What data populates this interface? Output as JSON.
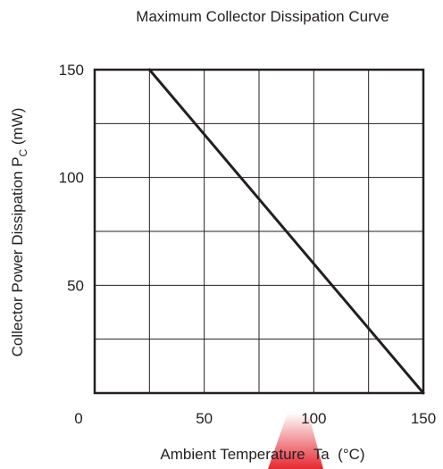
{
  "chart_data": {
    "type": "line",
    "title": "Maximum Collector Dissipation Curve",
    "xlabel": "Ambient Temperature  Ta  (°C)",
    "ylabel": "Collector Power Dissipation P",
    "ylabel_subscript": "C",
    "ylabel_unit": " (mW)",
    "xlim": [
      0,
      150
    ],
    "ylim": [
      0,
      150
    ],
    "x_grid": [
      0,
      25,
      50,
      75,
      100,
      125,
      150
    ],
    "y_grid": [
      0,
      25,
      50,
      75,
      100,
      125,
      150
    ],
    "x_ticks": [
      {
        "value": 0,
        "label": "0"
      },
      {
        "value": 50,
        "label": "50"
      },
      {
        "value": 100,
        "label": "100"
      },
      {
        "value": 150,
        "label": "150"
      }
    ],
    "y_ticks": [
      {
        "value": 50,
        "label": "50"
      },
      {
        "value": 100,
        "label": "100"
      },
      {
        "value": 150,
        "label": "150"
      }
    ],
    "grid": true,
    "series": [
      {
        "x": [
          25,
          150
        ],
        "y": [
          150,
          0
        ]
      }
    ]
  },
  "colors": {
    "ink": "#231f20",
    "grid": "#231f20",
    "watermark": "#e3101a"
  }
}
